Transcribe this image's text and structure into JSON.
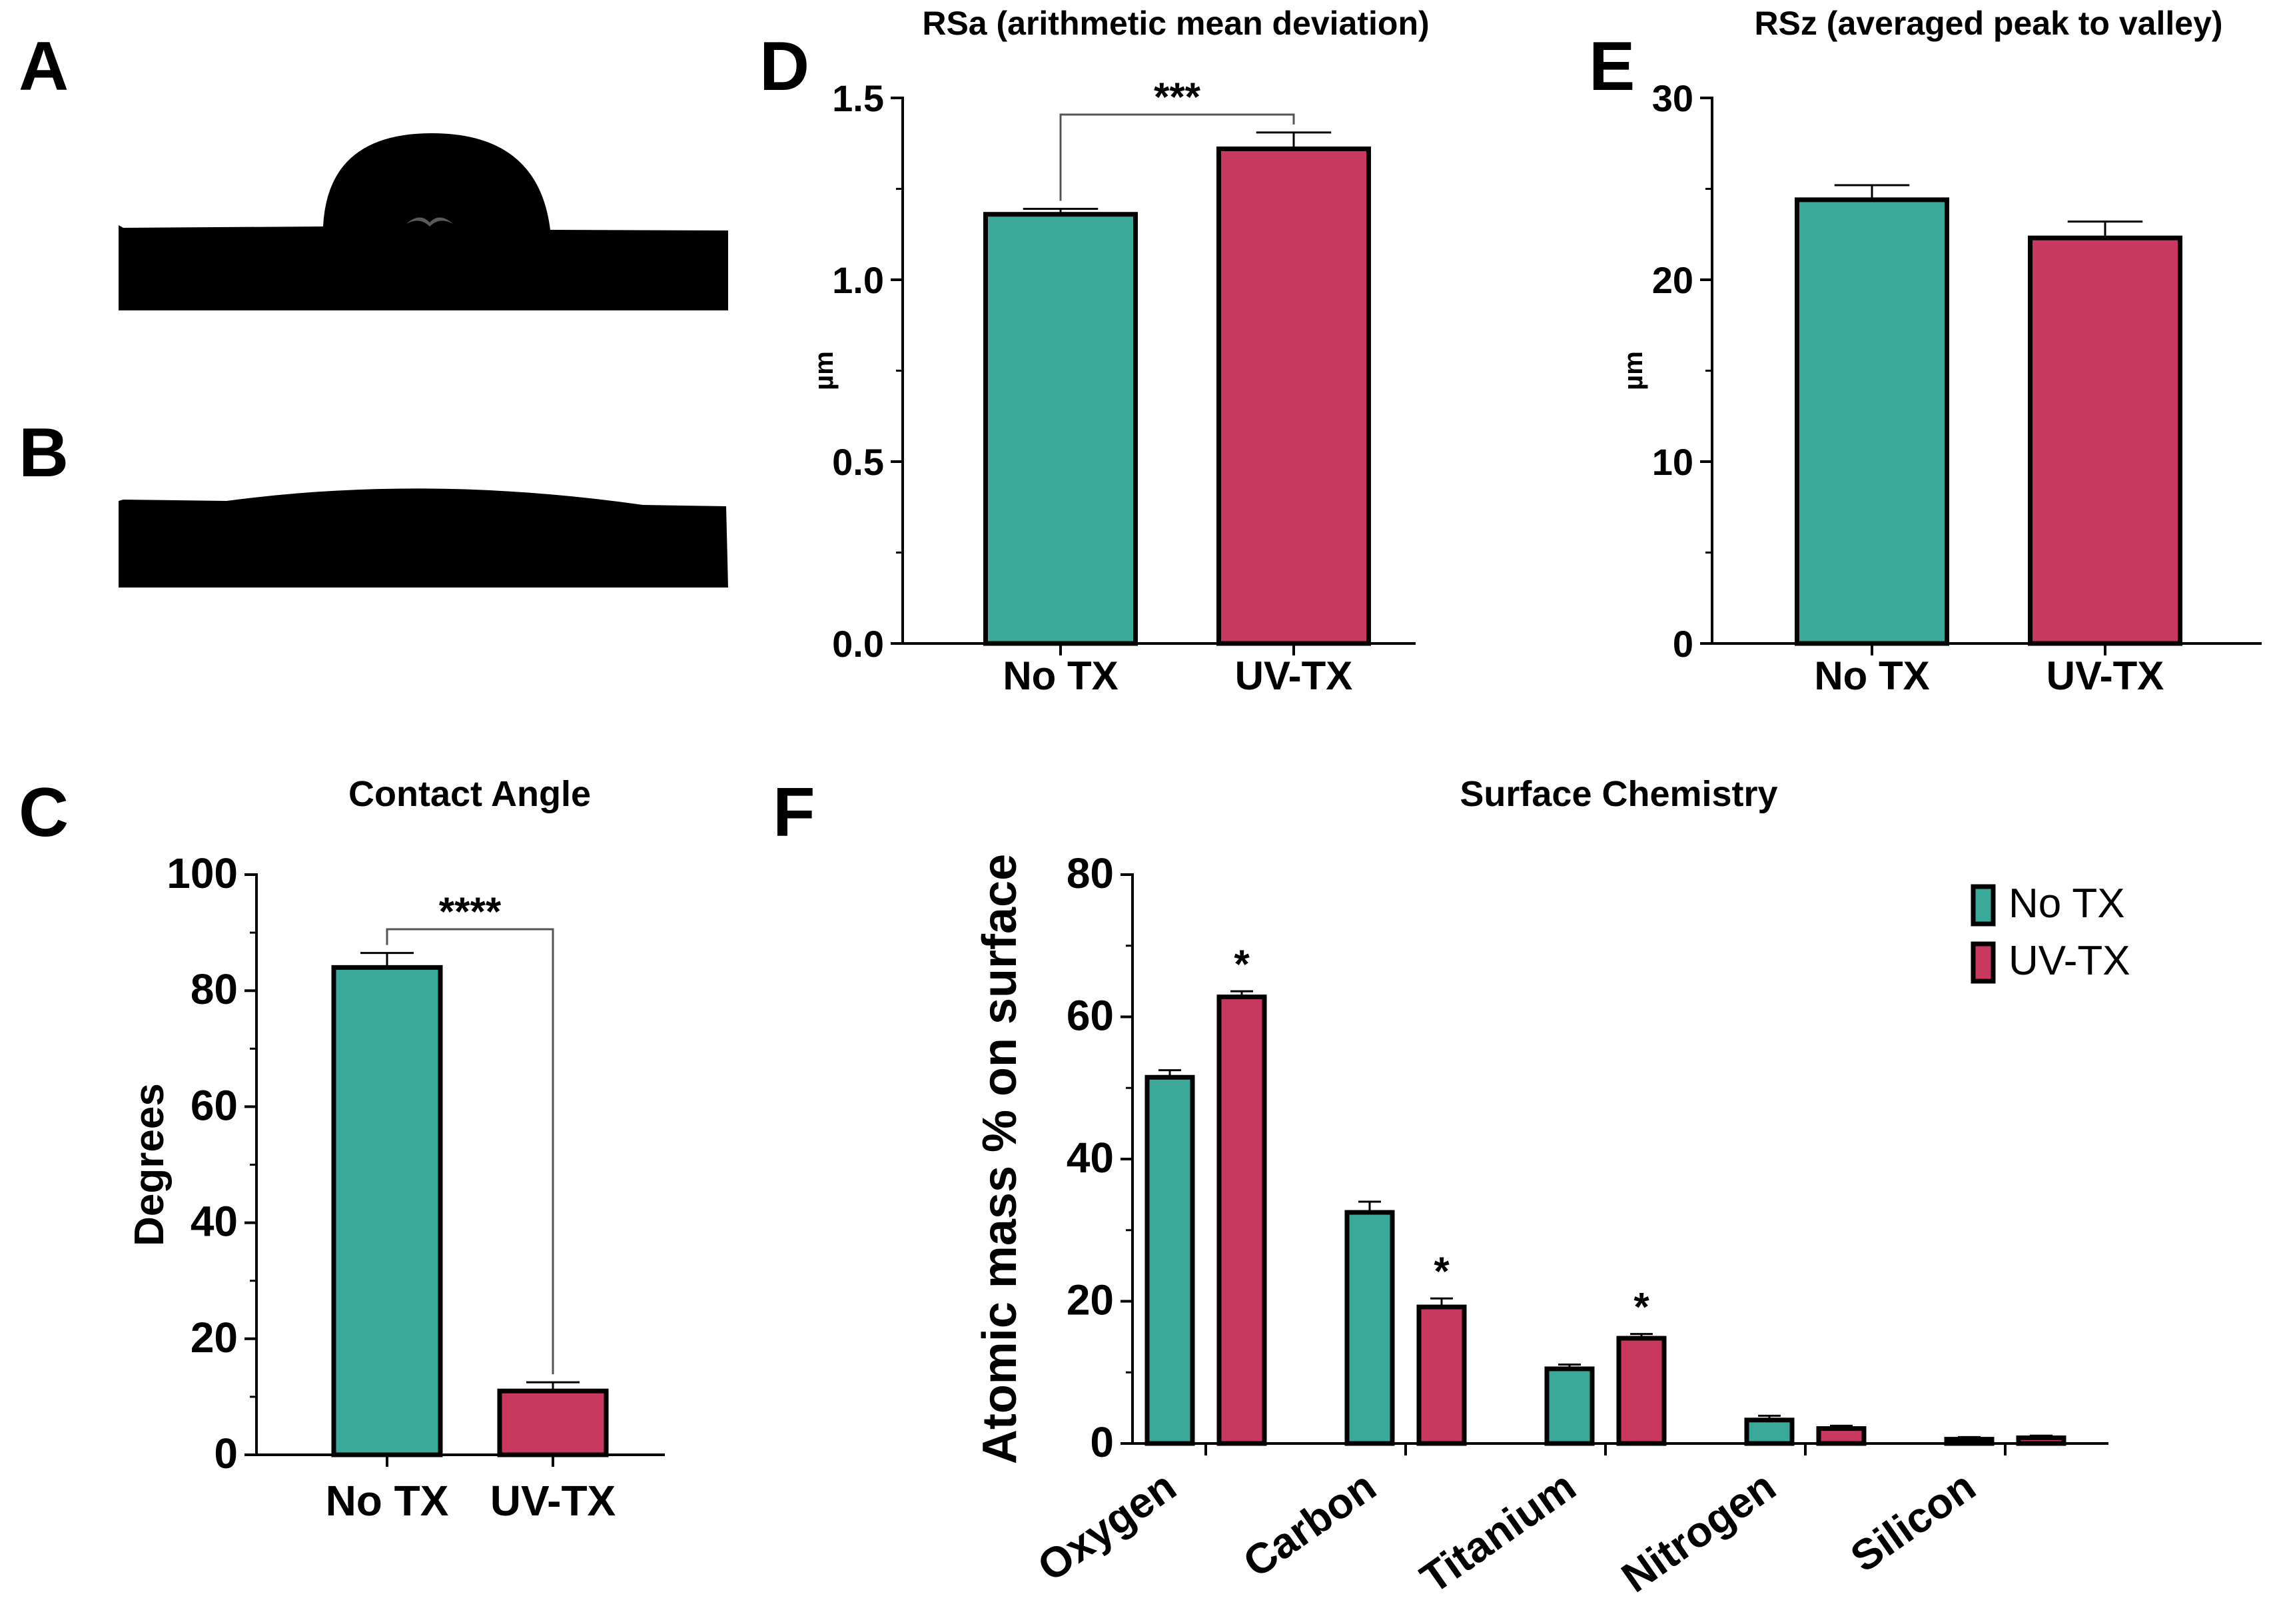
{
  "panels": {
    "A": {
      "letter": "A"
    },
    "B": {
      "letter": "B"
    },
    "C": {
      "letter": "C"
    },
    "D": {
      "letter": "D"
    },
    "E": {
      "letter": "E"
    },
    "F": {
      "letter": "F"
    }
  },
  "colors": {
    "no_tx": "#3aa99a",
    "uv_tx": "#c9395f",
    "axis": "#000000",
    "droplet": "#000000"
  },
  "chart_data": [
    {
      "id": "C",
      "type": "bar",
      "title": "Contact Angle",
      "ylabel": "Degrees",
      "categories": [
        "No TX",
        "UV-TX"
      ],
      "values": [
        84,
        11
      ],
      "errors": [
        2.5,
        1.5
      ],
      "ylim": [
        0,
        100
      ],
      "yticks": [
        0,
        20,
        40,
        60,
        80,
        100
      ],
      "ytick_labels": [
        "0",
        "20",
        "40",
        "60",
        "80",
        "100"
      ],
      "significance": "****"
    },
    {
      "id": "D",
      "type": "bar",
      "title": "RSa (arithmetic mean deviation)",
      "ylabel": "µm",
      "categories": [
        "No TX",
        "UV-TX"
      ],
      "values": [
        1.18,
        1.36
      ],
      "errors": [
        0.015,
        0.045
      ],
      "ylim": [
        0,
        1.5
      ],
      "yticks": [
        0,
        0.5,
        1.0,
        1.5
      ],
      "ytick_labels": [
        "0.0",
        "0.5",
        "1.0",
        "1.5"
      ],
      "significance": "***"
    },
    {
      "id": "E",
      "type": "bar",
      "title": "RSz (averaged peak to valley)",
      "ylabel": "µm",
      "categories": [
        "No TX",
        "UV-TX"
      ],
      "values": [
        24.4,
        22.3
      ],
      "errors": [
        0.8,
        0.9
      ],
      "ylim": [
        0,
        30
      ],
      "yticks": [
        0,
        10,
        20,
        30
      ],
      "ytick_labels": [
        "0",
        "10",
        "20",
        "30"
      ]
    },
    {
      "id": "F",
      "type": "bar",
      "title": "Surface Chemistry",
      "ylabel": "Atomic mass % on surface",
      "categories": [
        "Oxygen",
        "Carbon",
        "Titanium",
        "Nitrogen",
        "Silicon"
      ],
      "series": [
        {
          "name": "No TX",
          "values": [
            51.5,
            32.5,
            10.5,
            3.3,
            0.6
          ],
          "errors": [
            1.0,
            1.5,
            0.6,
            0.6,
            0.3
          ]
        },
        {
          "name": "UV-TX",
          "values": [
            62.8,
            19.2,
            14.8,
            2.1,
            0.8
          ],
          "errors": [
            0.8,
            1.2,
            0.6,
            0.4,
            0.3
          ]
        }
      ],
      "significance": [
        "*",
        "*",
        "*",
        "",
        ""
      ],
      "ylim": [
        0,
        80
      ],
      "yticks": [
        0,
        20,
        40,
        60,
        80
      ],
      "ytick_labels": [
        "0",
        "20",
        "40",
        "60",
        "80"
      ],
      "legend": "top-right"
    }
  ]
}
